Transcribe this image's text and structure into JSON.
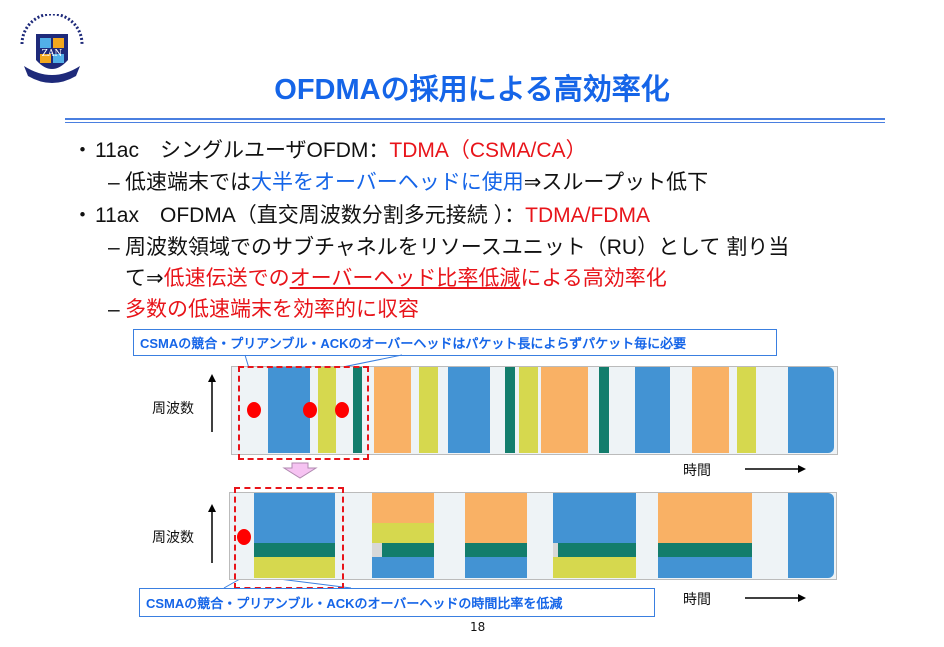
{
  "logo": {
    "text_top": "UNIVERSITAS NANZAN",
    "letters": [
      "N",
      "Z",
      "A",
      "N",
      "N"
    ],
    "motto": "HOMINIS DIGNITATI"
  },
  "title": "OFDMAの採用による高効率化",
  "bullets": [
    {
      "marker": "・",
      "parts": [
        {
          "text": "11ac　シングルユーザOFDM：",
          "color": "black"
        },
        {
          "text": "TDMA（CSMA/CA）",
          "color": "red"
        }
      ]
    },
    {
      "marker": "–",
      "parts": [
        {
          "text": "低速端末では",
          "color": "black"
        },
        {
          "text": "大半をオーバーヘッドに使用",
          "color": "blue"
        },
        {
          "text": "⇒スループット低下",
          "color": "black"
        }
      ]
    },
    {
      "marker": "・",
      "parts": [
        {
          "text": "11ax　OFDMA（直交周波数分割多元接続 ）：",
          "color": "black"
        },
        {
          "text": "TDMA/FDMA",
          "color": "red"
        }
      ]
    },
    {
      "marker": "–",
      "parts": [
        {
          "text": "周波数領域でのサブチャネルをリソースユニット（RU）として 割り当",
          "color": "black"
        }
      ]
    },
    {
      "marker": "",
      "parts": [
        {
          "text": "て⇒",
          "color": "black"
        },
        {
          "text": "低速伝送での",
          "color": "red"
        },
        {
          "text": "オーバーヘッド比率低減",
          "color": "red"
        },
        {
          "text": "による高効率化",
          "color": "red"
        }
      ]
    },
    {
      "marker": "–",
      "parts": [
        {
          "text": "多数の低速端末を効率的に収容",
          "color": "red"
        }
      ]
    }
  ],
  "diagram_top": {
    "callout": "CSMAの競合・プリアンブル・ACKのオーバーヘッドはパケット長によらずパケット毎に必要",
    "y_label": "周波数",
    "x_label": "時間"
  },
  "diagram_bottom": {
    "callout": "CSMAの競合・プリアンブル・ACKのオーバーヘッドの時間比率を低減",
    "y_label": "周波数",
    "x_label": "時間"
  },
  "page_number": "18",
  "colors": {
    "title": "#1565e8",
    "red": "#e8141a",
    "blue_block": "#4393d3",
    "orange_block": "#f9b165",
    "yellow_block": "#d6d84e",
    "green_block": "#137d6c",
    "background_band": "#eef3f6"
  }
}
